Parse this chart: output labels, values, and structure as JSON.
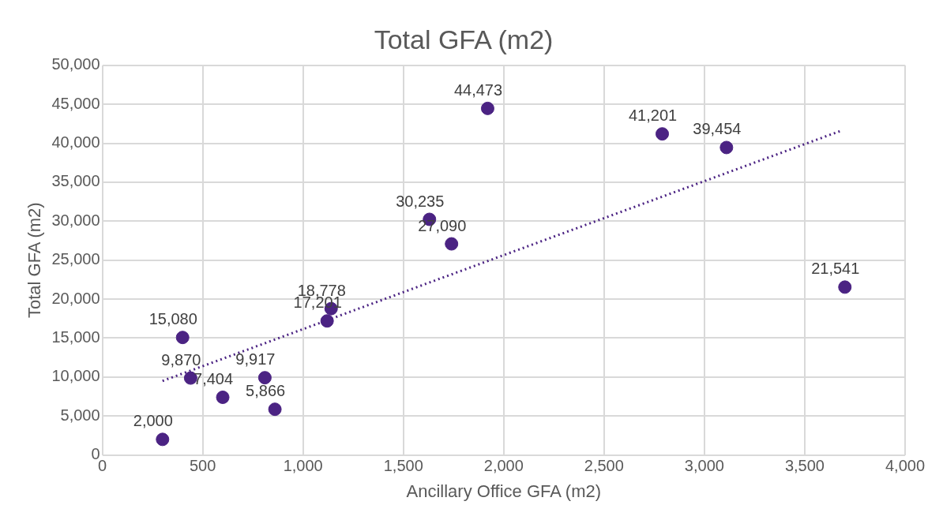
{
  "chart_data": {
    "type": "scatter",
    "title": "Total GFA (m2)",
    "xlabel": "Ancillary Office GFA (m2)",
    "ylabel": "Total GFA (m2)",
    "xlim": [
      0,
      4000
    ],
    "ylim": [
      0,
      50000
    ],
    "xticks": [
      0,
      500,
      {
        "value": 1000,
        "label": "1,000"
      },
      {
        "value": 1500,
        "label": "1,500"
      },
      {
        "value": 2000,
        "label": "2,000"
      },
      {
        "value": 2500,
        "label": "2,500"
      },
      {
        "value": 3000,
        "label": "3,000"
      },
      {
        "value": 3500,
        "label": "3,500"
      },
      {
        "value": 4000,
        "label": "4,000"
      }
    ],
    "yticks": [
      0,
      {
        "value": 5000,
        "label": "5,000"
      },
      {
        "value": 10000,
        "label": "10,000"
      },
      {
        "value": 15000,
        "label": "15,000"
      },
      {
        "value": 20000,
        "label": "20,000"
      },
      {
        "value": 25000,
        "label": "25,000"
      },
      {
        "value": 30000,
        "label": "30,000"
      },
      {
        "value": 35000,
        "label": "35,000"
      },
      {
        "value": 40000,
        "label": "40,000"
      },
      {
        "value": 45000,
        "label": "45,000"
      },
      {
        "value": 50000,
        "label": "50,000"
      }
    ],
    "grid": true,
    "legend": false,
    "marker": "circle",
    "series": [
      {
        "color": "#4b2383",
        "x": [
          300,
          400,
          440,
          600,
          810,
          860,
          1120,
          1140,
          1630,
          1740,
          1920,
          2790,
          3110,
          3700
        ],
        "values": [
          2000,
          15080,
          9870,
          7404,
          9917,
          5866,
          17201,
          18778,
          30235,
          27090,
          44473,
          41201,
          39454,
          21541
        ],
        "value_labels": [
          "2,000",
          "15,080",
          "9,870",
          "7,404",
          "9,917",
          "5,866",
          "17,201",
          "18,778",
          "30,235",
          "27,090",
          "44,473",
          "41,201",
          "39,454",
          "21,541"
        ]
      },
      {
        "type": "line",
        "color": "#4b2383",
        "line_style": "dotted",
        "marker": "none",
        "x": [
          300,
          3680
        ],
        "values": [
          9500,
          41600
        ]
      }
    ]
  }
}
